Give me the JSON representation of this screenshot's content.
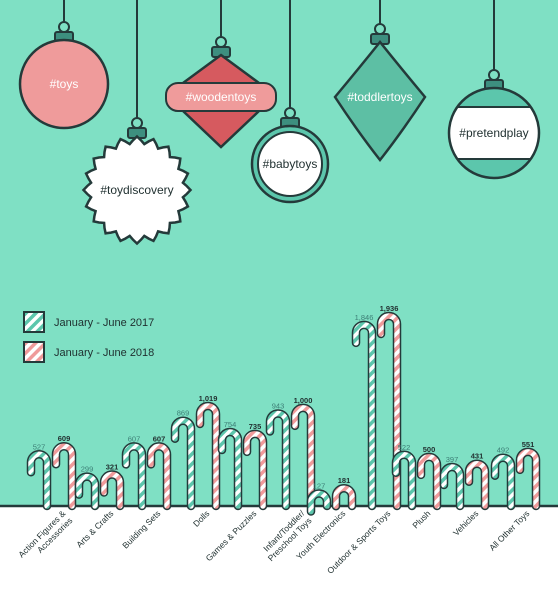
{
  "ornaments": [
    {
      "label": "#toys",
      "shape": "circle",
      "fill": "#ef9b9b",
      "text_color": "#ffffff"
    },
    {
      "label": "#toydiscovery",
      "shape": "scallop",
      "fill": "#ffffff",
      "text_color": "#1f2f2f"
    },
    {
      "label": "#woodentoys",
      "shape": "lantern",
      "fill": "#ef9b9b",
      "text_color": "#ffffff"
    },
    {
      "label": "#babytoys",
      "shape": "ring",
      "fill": "#ffffff",
      "text_color": "#1f2f2f"
    },
    {
      "label": "#toddlertoys",
      "shape": "diamond",
      "fill": "#5dbfa4",
      "text_color": "#ffffff"
    },
    {
      "label": "#pretendplay",
      "shape": "banded",
      "fill": "#ffffff",
      "text_color": "#1f2f2f"
    }
  ],
  "colors": {
    "background": "#7fe0c4",
    "outline": "#243a3a",
    "teal": "#5cc6ac",
    "pink": "#ef9b9b",
    "white": "#ffffff",
    "label_panel": "#ffffff"
  },
  "chart_data": {
    "type": "bar",
    "categories": [
      "Action Figures & Accessories",
      "Arts & Crafts",
      "Building Sets",
      "Dolls",
      "Games & Puzzles",
      "Infant/Toddler/ Preschool Toys",
      "Youth Electronics",
      "Outdoor & Sports Toys",
      "Plush",
      "Vehicles",
      "All Other Toys"
    ],
    "series": [
      {
        "name": "January - June 2017",
        "values": [
          527,
          299,
          607,
          869,
          754,
          943,
          127,
          1846,
          522,
          397,
          492
        ],
        "labels": [
          "527",
          "299",
          "607",
          "869",
          "754",
          "943",
          "127",
          "1,846",
          "522",
          "397",
          "492"
        ]
      },
      {
        "name": "January - June 2018",
        "values": [
          609,
          321,
          607,
          1019,
          735,
          1000,
          181,
          1936,
          500,
          431,
          551
        ],
        "labels": [
          "609",
          "321",
          "607",
          "1,019",
          "735",
          "1,000",
          "181",
          "1,936",
          "500",
          "431",
          "551"
        ]
      }
    ],
    "legend": "top-left",
    "grid": false
  }
}
